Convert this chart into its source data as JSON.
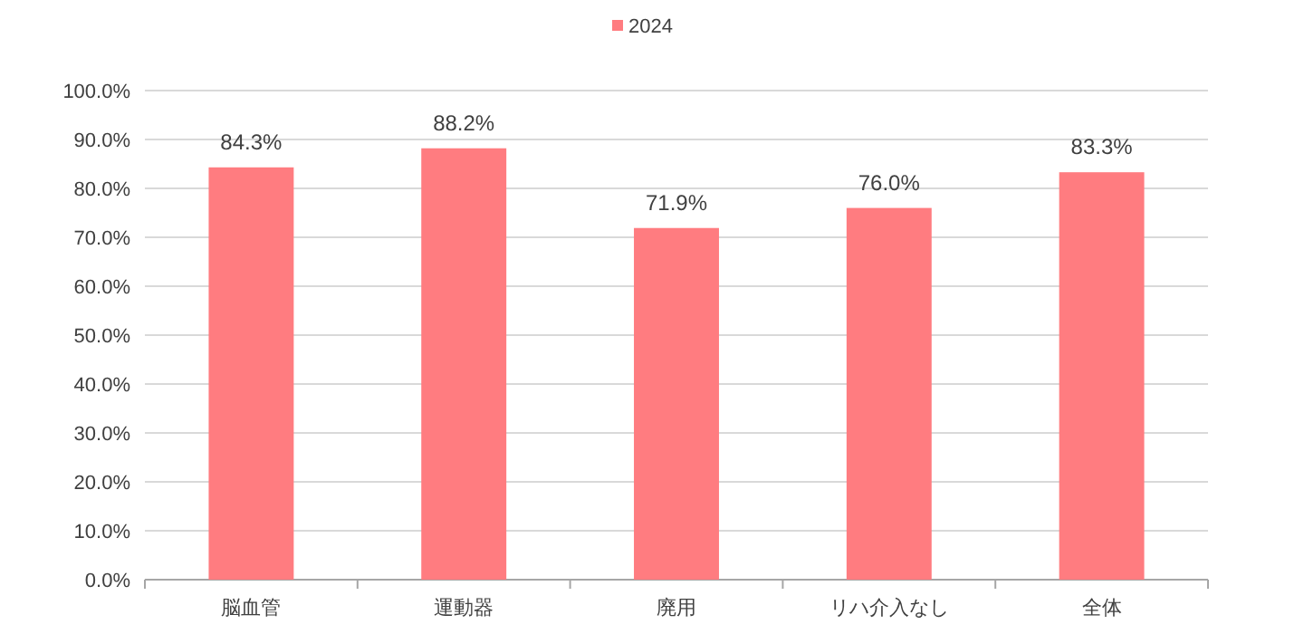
{
  "chart_data": {
    "type": "bar",
    "categories": [
      "脳血管",
      "運動器",
      "廃用",
      "リハ介入なし",
      "全体"
    ],
    "series": [
      {
        "name": "2024",
        "color": "#ff7c80",
        "values": [
          84.3,
          88.2,
          71.9,
          76.0,
          83.3
        ],
        "value_labels": [
          "84.3%",
          "88.2%",
          "71.9%",
          "76.0%",
          "83.3%"
        ]
      }
    ],
    "ylim": [
      0,
      100
    ],
    "yticks": [
      {
        "value": 0,
        "label": "0.0%"
      },
      {
        "value": 10,
        "label": "10.0%"
      },
      {
        "value": 20,
        "label": "20.0%"
      },
      {
        "value": 30,
        "label": "30.0%"
      },
      {
        "value": 40,
        "label": "40.0%"
      },
      {
        "value": 50,
        "label": "50.0%"
      },
      {
        "value": 60,
        "label": "60.0%"
      },
      {
        "value": 70,
        "label": "70.0%"
      },
      {
        "value": 80,
        "label": "80.0%"
      },
      {
        "value": 90,
        "label": "90.0%"
      },
      {
        "value": 100,
        "label": "100.0%"
      }
    ],
    "grid": "y",
    "legend": "top"
  }
}
